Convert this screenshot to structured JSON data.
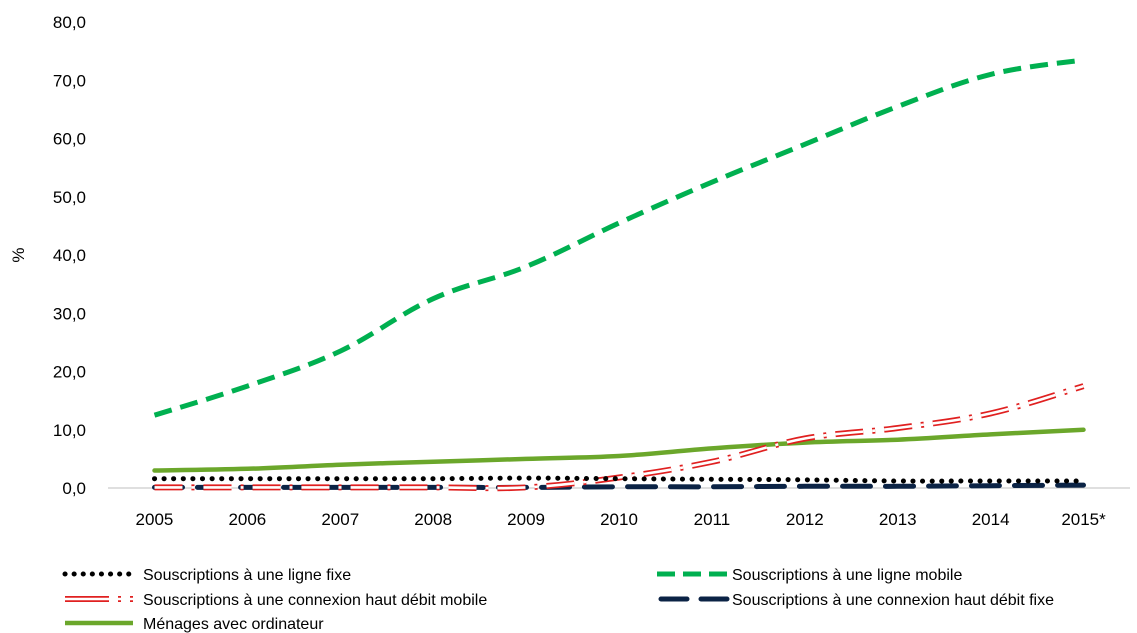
{
  "chart_data": {
    "type": "line",
    "ylabel": "%",
    "ylim": [
      0,
      80
    ],
    "yticks": [
      "0,0",
      "10,0",
      "20,0",
      "30,0",
      "40,0",
      "50,0",
      "60,0",
      "70,0",
      "80,0"
    ],
    "categories": [
      "2005",
      "2006",
      "2007",
      "2008",
      "2009",
      "2010",
      "2011",
      "2012",
      "2013",
      "2014",
      "2015*"
    ],
    "legend_position": "bottom",
    "grid": false,
    "series": [
      {
        "name": "Souscriptions à une ligne fixe",
        "key": "fixe",
        "color": "#000000",
        "values": [
          1.6,
          1.6,
          1.6,
          1.6,
          1.7,
          1.6,
          1.5,
          1.4,
          1.2,
          1.2,
          1.2
        ]
      },
      {
        "name": "Souscriptions à une ligne mobile",
        "key": "mobile",
        "color": "#00B050",
        "values": [
          12.5,
          17.5,
          23.5,
          32.5,
          38.0,
          45.5,
          52.5,
          59.0,
          65.5,
          71.0,
          73.5
        ]
      },
      {
        "name": "Souscriptions à une connexion haut débit mobile",
        "key": "hdmobile",
        "color": "#E02020",
        "values": [
          0.1,
          0.1,
          0.1,
          0.1,
          0.1,
          1.8,
          4.5,
          8.5,
          10.3,
          12.8,
          17.5
        ]
      },
      {
        "name": "Souscriptions à une connexion haut débit fixe",
        "key": "hdfixe",
        "color": "#0B2345",
        "values": [
          0.1,
          0.1,
          0.1,
          0.1,
          0.1,
          0.2,
          0.2,
          0.3,
          0.3,
          0.4,
          0.5
        ]
      },
      {
        "name": "Ménages avec ordinateur",
        "key": "menages",
        "color": "#6BA72B",
        "values": [
          3.0,
          3.3,
          4.0,
          4.5,
          5.0,
          5.5,
          6.8,
          7.8,
          8.3,
          9.2,
          10.0
        ]
      }
    ]
  }
}
